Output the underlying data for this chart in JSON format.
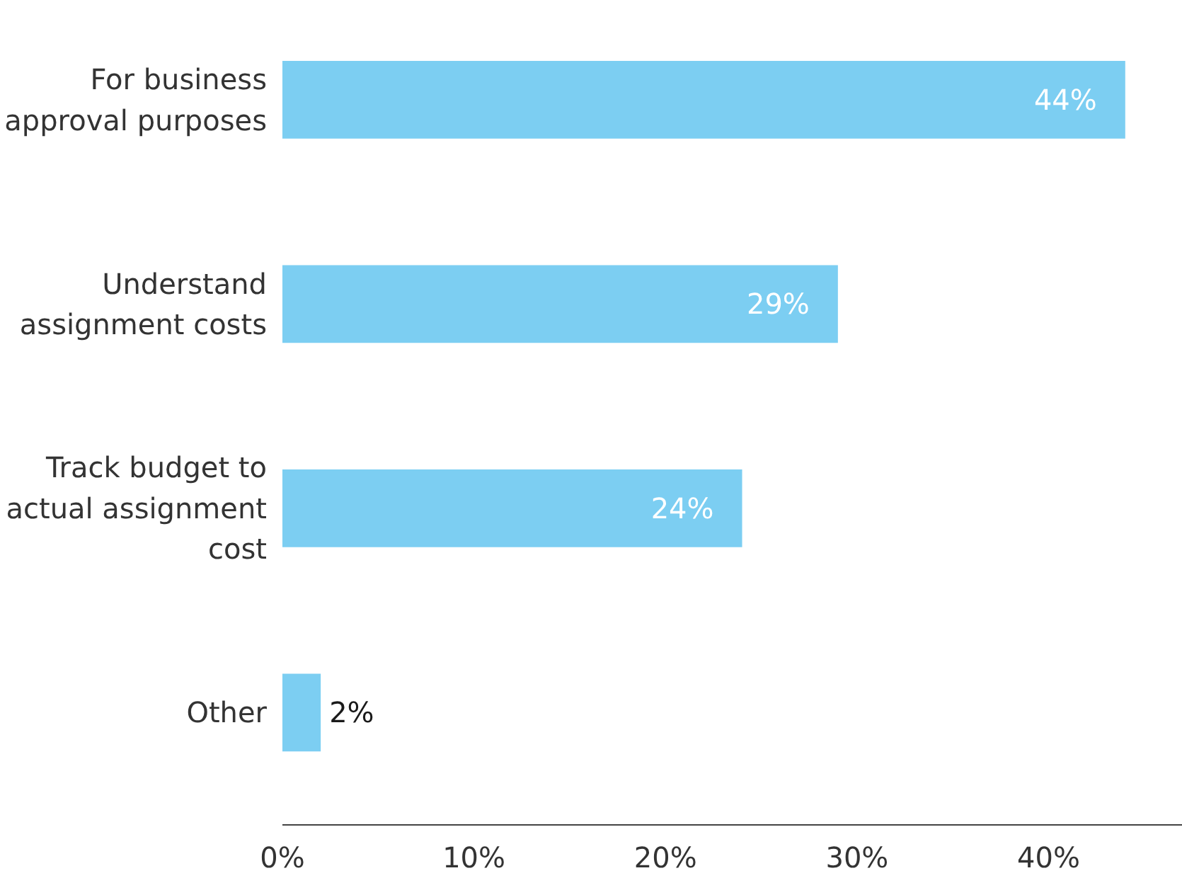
{
  "chart_data": {
    "type": "bar",
    "orientation": "horizontal",
    "categories": [
      "For business approval purposes",
      "Understand assignment costs",
      "Track budget to actual assignment cost",
      "Other"
    ],
    "values": [
      44,
      29,
      24,
      2
    ],
    "value_labels": [
      "44%",
      "29%",
      "24%",
      "2%"
    ],
    "color": "#7ccef2",
    "xlim": [
      0,
      47
    ],
    "xticks": [
      {
        "value": 0,
        "label": "0%"
      },
      {
        "value": 10,
        "label": "10%"
      },
      {
        "value": 20,
        "label": "20%"
      },
      {
        "value": 30,
        "label": "30%"
      },
      {
        "value": 40,
        "label": "40%"
      }
    ],
    "grid": false
  }
}
